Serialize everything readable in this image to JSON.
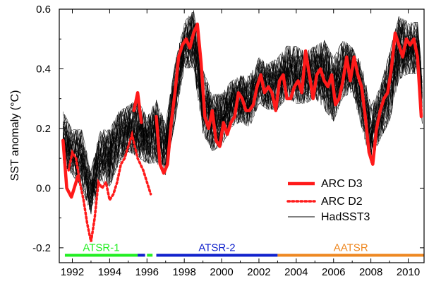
{
  "chart_data": {
    "type": "line",
    "title": "",
    "xlabel": "",
    "ylabel": "SST anomaly (°C)",
    "xlim": [
      1991.3,
      2010.85
    ],
    "ylim": [
      -0.25,
      0.6
    ],
    "x_ticks": [
      1992,
      1994,
      1996,
      1998,
      2000,
      2002,
      2004,
      2006,
      2008,
      2010
    ],
    "y_ticks": [
      {
        "value": -0.2,
        "label": "-0.2"
      },
      {
        "value": 0.0,
        "label": "0.0"
      },
      {
        "value": 0.2,
        "label": "0.2"
      },
      {
        "value": 0.4,
        "label": "0.4"
      },
      {
        "value": 0.6,
        "label": "0.6"
      }
    ],
    "legend": {
      "position": "lower-right",
      "entries": [
        {
          "label": "ARC D3",
          "style": "thick-solid",
          "color": "#ff1a1a"
        },
        {
          "label": "ARC D2",
          "style": "dotted",
          "color": "#ff1a1a"
        },
        {
          "label": "HadSST3",
          "style": "thin-solid",
          "color": "#000000"
        }
      ]
    },
    "colors": {
      "arc": "#ff1a1a",
      "hadsst3": "#000000",
      "atsr1": "#22ee22",
      "atsr2": "#1122cc",
      "aatsr": "#ee8822"
    },
    "hadsst3_band": {
      "name": "HadSST3",
      "note": "ensemble of realisations, approximate envelope",
      "x": [
        1991.5,
        1992.0,
        1992.5,
        1993.0,
        1993.5,
        1994.0,
        1994.5,
        1995.0,
        1995.5,
        1996.0,
        1996.5,
        1997.0,
        1997.5,
        1998.0,
        1998.5,
        1999.0,
        1999.5,
        2000.0,
        2000.5,
        2001.0,
        2001.5,
        2002.0,
        2002.5,
        2003.0,
        2003.5,
        2004.0,
        2004.5,
        2005.0,
        2005.5,
        2006.0,
        2006.5,
        2007.0,
        2007.5,
        2008.0,
        2008.5,
        2009.0,
        2009.5,
        2010.0,
        2010.5,
        2010.8
      ],
      "low": [
        0.08,
        0.04,
        0.0,
        -0.09,
        0.02,
        0.0,
        0.08,
        0.12,
        0.1,
        0.08,
        0.08,
        0.04,
        0.22,
        0.4,
        0.4,
        0.18,
        0.12,
        0.14,
        0.2,
        0.22,
        0.2,
        0.28,
        0.26,
        0.26,
        0.3,
        0.28,
        0.28,
        0.3,
        0.26,
        0.22,
        0.3,
        0.32,
        0.2,
        0.08,
        0.16,
        0.22,
        0.36,
        0.38,
        0.38,
        0.18
      ],
      "high": [
        0.26,
        0.2,
        0.2,
        0.06,
        0.2,
        0.2,
        0.26,
        0.28,
        0.3,
        0.24,
        0.3,
        0.22,
        0.42,
        0.56,
        0.6,
        0.4,
        0.32,
        0.32,
        0.36,
        0.38,
        0.38,
        0.44,
        0.42,
        0.44,
        0.48,
        0.48,
        0.46,
        0.48,
        0.5,
        0.44,
        0.5,
        0.48,
        0.42,
        0.28,
        0.34,
        0.46,
        0.58,
        0.56,
        0.56,
        0.34
      ]
    },
    "series": [
      {
        "name": "ARC D3",
        "segments": [
          {
            "x": [
              1991.5,
              1991.7,
              1991.95,
              1992.1,
              1992.3
            ],
            "y": [
              0.16,
              0.0,
              -0.03,
              0.0,
              0.04
            ]
          },
          {
            "x": [
              1995.3,
              1995.5,
              1995.7
            ],
            "y": [
              0.26,
              0.32,
              0.22
            ]
          },
          {
            "x": [
              1996.5,
              1996.7,
              1996.9,
              1997.1,
              1997.3,
              1997.5,
              1997.7,
              1997.9,
              1998.1,
              1998.3,
              1998.5,
              1998.7,
              1998.9,
              1999.1,
              1999.3,
              1999.5,
              1999.7,
              1999.9,
              2000.1,
              2000.3,
              2000.5,
              2000.7,
              2000.9,
              2001.1,
              2001.3,
              2001.5,
              2001.7,
              2001.9,
              2002.1,
              2002.3,
              2002.5,
              2002.7,
              2002.9,
              2003.1,
              2003.3,
              2003.5,
              2003.7,
              2003.9,
              2004.1,
              2004.3,
              2004.5,
              2004.7,
              2004.9,
              2005.1,
              2005.3,
              2005.5,
              2005.7,
              2005.9,
              2006.1,
              2006.3,
              2006.5,
              2006.7,
              2006.9,
              2007.1,
              2007.3,
              2007.5,
              2007.7,
              2007.9,
              2008.1,
              2008.3,
              2008.5,
              2008.7,
              2008.9,
              2009.1,
              2009.3,
              2009.5,
              2009.7,
              2009.9,
              2010.1,
              2010.3,
              2010.5,
              2010.7
            ],
            "y": [
              0.24,
              0.08,
              0.05,
              0.08,
              0.22,
              0.32,
              0.44,
              0.48,
              0.5,
              0.47,
              0.52,
              0.55,
              0.42,
              0.24,
              0.2,
              0.26,
              0.16,
              0.14,
              0.22,
              0.18,
              0.22,
              0.24,
              0.32,
              0.3,
              0.26,
              0.26,
              0.28,
              0.34,
              0.38,
              0.32,
              0.34,
              0.32,
              0.26,
              0.36,
              0.38,
              0.3,
              0.3,
              0.34,
              0.36,
              0.32,
              0.46,
              0.38,
              0.3,
              0.38,
              0.4,
              0.36,
              0.34,
              0.38,
              0.28,
              0.3,
              0.36,
              0.44,
              0.36,
              0.44,
              0.38,
              0.34,
              0.24,
              0.12,
              0.08,
              0.2,
              0.26,
              0.3,
              0.32,
              0.4,
              0.52,
              0.48,
              0.44,
              0.5,
              0.48,
              0.5,
              0.44,
              0.24
            ]
          }
        ]
      },
      {
        "name": "ARC D2",
        "x": [
          1991.8,
          1992.0,
          1992.2,
          1992.4,
          1992.6,
          1992.8,
          1993.0,
          1993.2,
          1993.4,
          1993.6,
          1993.8,
          1994.0,
          1994.2,
          1994.4,
          1994.6,
          1994.8,
          1995.0,
          1995.2,
          1995.5,
          1995.8,
          1996.0,
          1996.2
        ],
        "y": [
          0.06,
          0.12,
          0.1,
          0.02,
          -0.04,
          -0.12,
          -0.18,
          -0.1,
          0.02,
          0.0,
          0.02,
          -0.04,
          -0.02,
          0.02,
          0.08,
          0.1,
          0.14,
          0.18,
          0.1,
          0.06,
          0.02,
          -0.02
        ]
      }
    ],
    "sensor_periods": [
      {
        "label": "ATSR-1",
        "color": "#22ee22",
        "from": 1991.6,
        "to": 1995.5
      },
      {
        "label": "",
        "color": "#1122cc",
        "from": 1995.5,
        "to": 1995.9
      },
      {
        "label": "",
        "color": "#22ee22",
        "from": 1996.0,
        "to": 1996.3
      },
      {
        "label": "ATSR-2",
        "color": "#1122cc",
        "from": 1996.5,
        "to": 2003.0
      },
      {
        "label": "AATSR",
        "color": "#ee8822",
        "from": 2003.0,
        "to": 2010.85
      }
    ]
  }
}
